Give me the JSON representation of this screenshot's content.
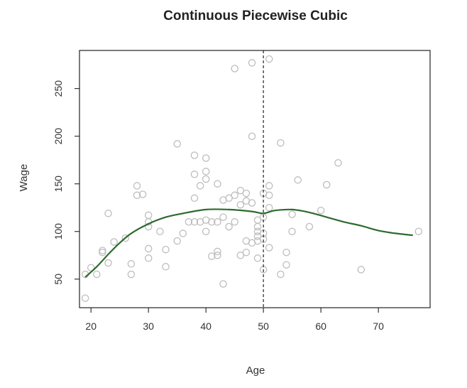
{
  "chart_data": {
    "type": "scatter",
    "title": "Continuous Piecewise Cubic",
    "xlabel": "Age",
    "ylabel": "Wage",
    "xlim": [
      18,
      79
    ],
    "ylim": [
      20,
      290
    ],
    "xticks": [
      20,
      30,
      40,
      50,
      60,
      70
    ],
    "yticks": [
      50,
      100,
      150,
      200,
      250
    ],
    "grid": false,
    "knot": 50,
    "colors": {
      "points": "#bdbdbd",
      "fit": "#2e6b2e",
      "knot": "#222222",
      "frame": "#222222"
    },
    "points": [
      [
        19,
        30
      ],
      [
        19,
        55
      ],
      [
        20,
        62
      ],
      [
        21,
        55
      ],
      [
        22,
        80
      ],
      [
        22,
        78
      ],
      [
        23,
        119
      ],
      [
        23,
        67
      ],
      [
        24,
        89
      ],
      [
        26,
        93
      ],
      [
        27,
        55
      ],
      [
        27,
        66
      ],
      [
        28,
        148
      ],
      [
        28,
        138
      ],
      [
        29,
        139
      ],
      [
        30,
        117
      ],
      [
        30,
        110
      ],
      [
        30,
        105
      ],
      [
        30,
        82
      ],
      [
        30,
        72
      ],
      [
        32,
        100
      ],
      [
        33,
        81
      ],
      [
        33,
        63
      ],
      [
        35,
        192
      ],
      [
        35,
        90
      ],
      [
        36,
        98
      ],
      [
        37,
        110
      ],
      [
        38,
        180
      ],
      [
        38,
        160
      ],
      [
        38,
        135
      ],
      [
        38,
        110
      ],
      [
        39,
        148
      ],
      [
        39,
        110
      ],
      [
        40,
        177
      ],
      [
        40,
        163
      ],
      [
        40,
        155
      ],
      [
        40,
        112
      ],
      [
        40,
        100
      ],
      [
        41,
        110
      ],
      [
        41,
        74
      ],
      [
        42,
        150
      ],
      [
        42,
        110
      ],
      [
        42,
        79
      ],
      [
        42,
        75
      ],
      [
        43,
        133
      ],
      [
        43,
        115
      ],
      [
        43,
        45
      ],
      [
        44,
        135
      ],
      [
        44,
        105
      ],
      [
        45,
        271
      ],
      [
        45,
        138
      ],
      [
        45,
        110
      ],
      [
        46,
        143
      ],
      [
        46,
        128
      ],
      [
        46,
        75
      ],
      [
        47,
        140
      ],
      [
        47,
        132
      ],
      [
        47,
        78
      ],
      [
        47,
        90
      ],
      [
        48,
        277
      ],
      [
        48,
        200
      ],
      [
        48,
        130
      ],
      [
        48,
        88
      ],
      [
        49,
        112
      ],
      [
        49,
        105
      ],
      [
        49,
        100
      ],
      [
        49,
        95
      ],
      [
        49,
        90
      ],
      [
        49,
        72
      ],
      [
        50,
        140
      ],
      [
        50,
        115
      ],
      [
        50,
        98
      ],
      [
        50,
        92
      ],
      [
        50,
        60
      ],
      [
        51,
        281
      ],
      [
        51,
        148
      ],
      [
        51,
        138
      ],
      [
        51,
        125
      ],
      [
        51,
        83
      ],
      [
        53,
        193
      ],
      [
        53,
        55
      ],
      [
        54,
        78
      ],
      [
        54,
        65
      ],
      [
        55,
        118
      ],
      [
        55,
        100
      ],
      [
        56,
        154
      ],
      [
        58,
        105
      ],
      [
        60,
        122
      ],
      [
        61,
        149
      ],
      [
        63,
        172
      ],
      [
        67,
        60
      ],
      [
        77,
        100
      ]
    ],
    "fit_line": {
      "x": [
        19,
        21,
        23,
        25,
        27,
        30,
        33,
        36,
        40,
        44,
        48,
        50,
        52,
        55,
        58,
        61,
        64,
        67,
        70,
        73,
        76
      ],
      "y": [
        52,
        63,
        76,
        88,
        98,
        108,
        115,
        119,
        123,
        123,
        121,
        119,
        122,
        123,
        120,
        115,
        110,
        106,
        101,
        98,
        96
      ]
    }
  }
}
